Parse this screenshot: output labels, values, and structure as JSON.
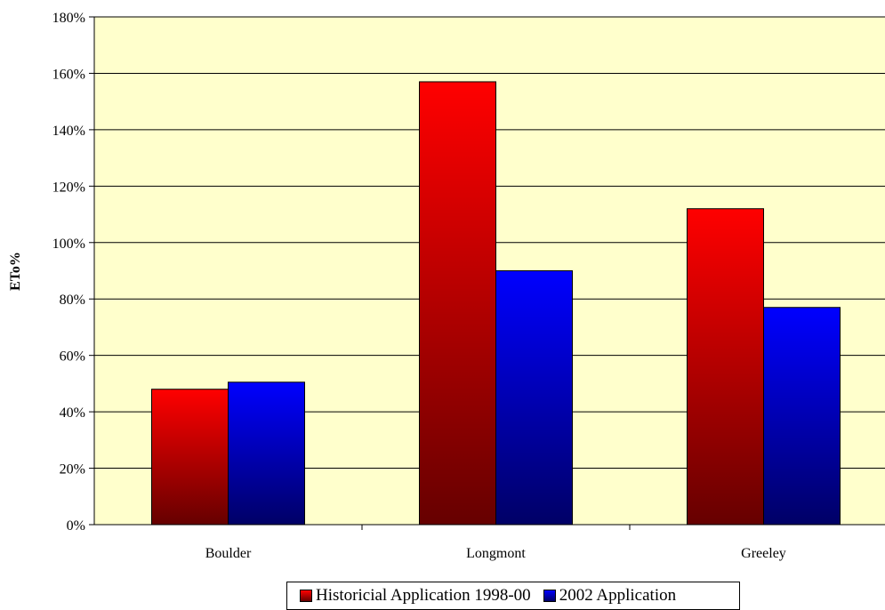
{
  "chart_data": {
    "type": "bar",
    "title": "",
    "xlabel": "",
    "ylabel": "ETo%",
    "categories": [
      "Boulder",
      "Longmont",
      "Greeley"
    ],
    "series": [
      {
        "name": "Historicial Application 1998-00",
        "values": [
          48,
          157,
          112
        ],
        "color_top": "#ff0000",
        "color_bottom": "#660000"
      },
      {
        "name": "2002 Application",
        "values": [
          50.5,
          90,
          77
        ],
        "color_top": "#0000ff",
        "color_bottom": "#000066"
      }
    ],
    "ylim": [
      0,
      180
    ],
    "yticks": [
      0,
      20,
      40,
      60,
      80,
      100,
      120,
      140,
      160,
      180
    ],
    "ytick_labels": [
      "0%",
      "20%",
      "40%",
      "60%",
      "80%",
      "100%",
      "120%",
      "140%",
      "160%",
      "180%"
    ],
    "grid": true,
    "plot_background": "#ffffcc",
    "legend_position": "bottom"
  }
}
